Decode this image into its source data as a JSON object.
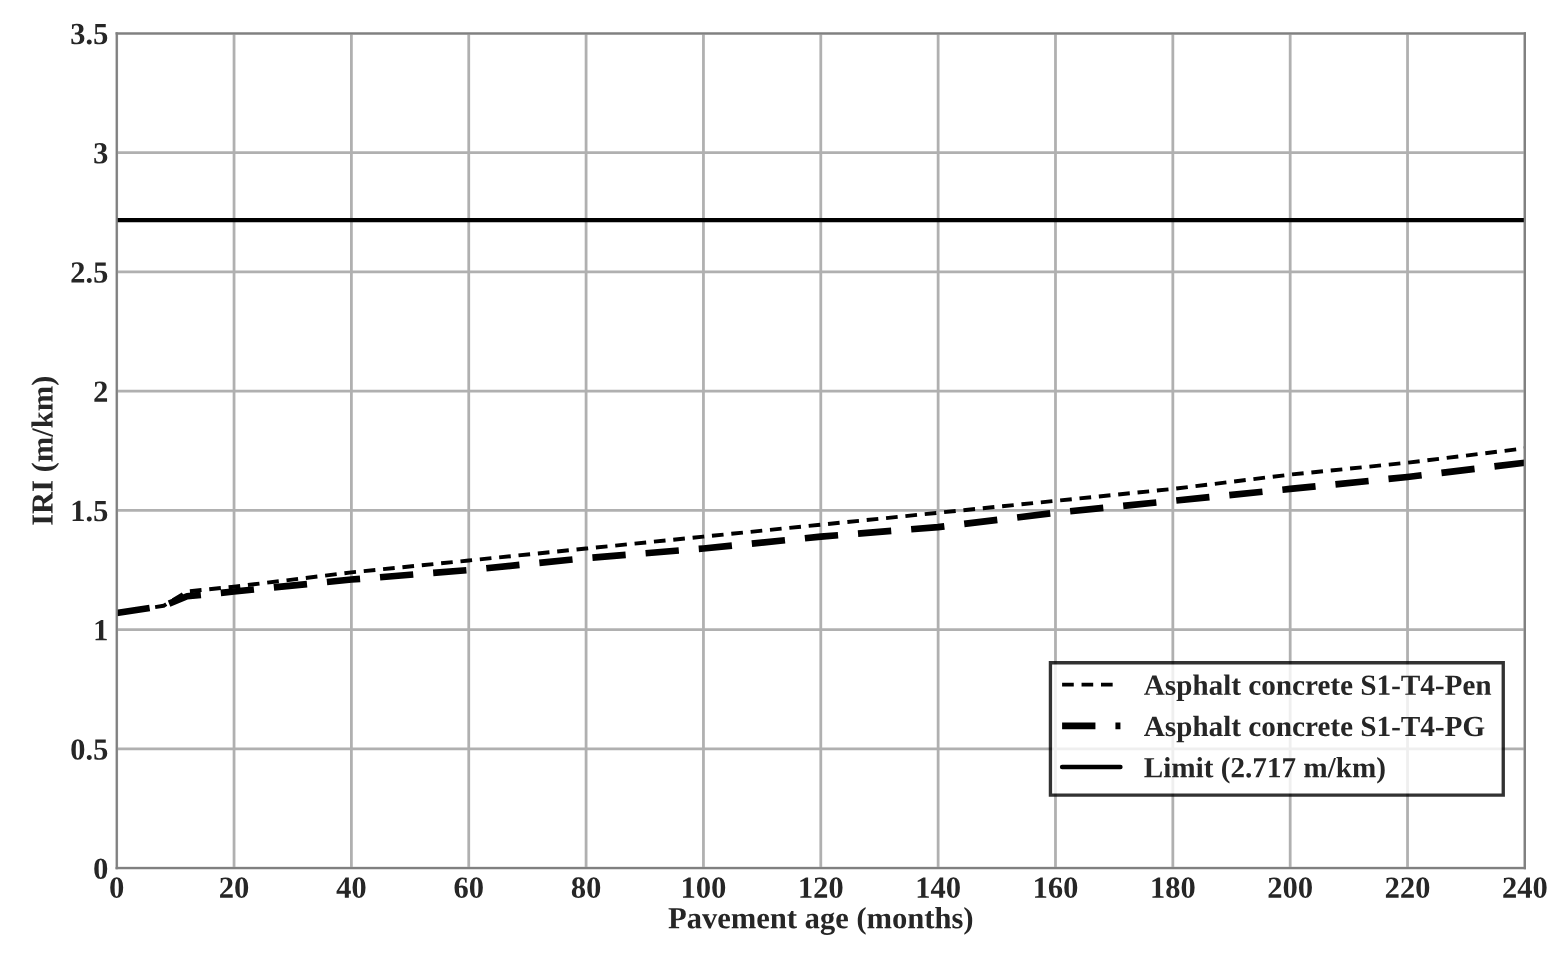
{
  "chart_data": {
    "type": "line",
    "xlabel": "Pavement age (months)",
    "ylabel": "IRI (m/km)",
    "x": [
      0,
      8,
      12,
      20,
      40,
      60,
      80,
      100,
      120,
      140,
      160,
      180,
      200,
      220,
      240
    ],
    "series": [
      {
        "name": "Asphalt concrete S1-T4-Pen",
        "color": "#000000",
        "line_style": "dotted",
        "values": [
          1.07,
          1.1,
          1.16,
          1.18,
          1.24,
          1.29,
          1.34,
          1.39,
          1.44,
          1.49,
          1.54,
          1.59,
          1.65,
          1.7,
          1.76
        ]
      },
      {
        "name": "Asphalt concrete S1-T4-PG",
        "color": "#000000",
        "line_style": "dashed",
        "values": [
          1.07,
          1.1,
          1.14,
          1.16,
          1.21,
          1.25,
          1.3,
          1.34,
          1.39,
          1.43,
          1.49,
          1.54,
          1.59,
          1.64,
          1.7
        ]
      }
    ],
    "ref_lines": [
      {
        "axis": "y",
        "value": 2.717,
        "label": "Limit (2.717 m/km)",
        "color": "#000000",
        "line_style": "solid"
      }
    ],
    "xlim": [
      0,
      240
    ],
    "xticks": [
      0,
      20,
      40,
      60,
      80,
      100,
      120,
      140,
      160,
      180,
      200,
      220,
      240
    ],
    "ylim": [
      0,
      3.5
    ],
    "yticks": [
      0,
      0.5,
      1,
      1.5,
      2,
      2.5,
      3,
      3.5
    ],
    "grid": true,
    "legend": "bottom right"
  }
}
